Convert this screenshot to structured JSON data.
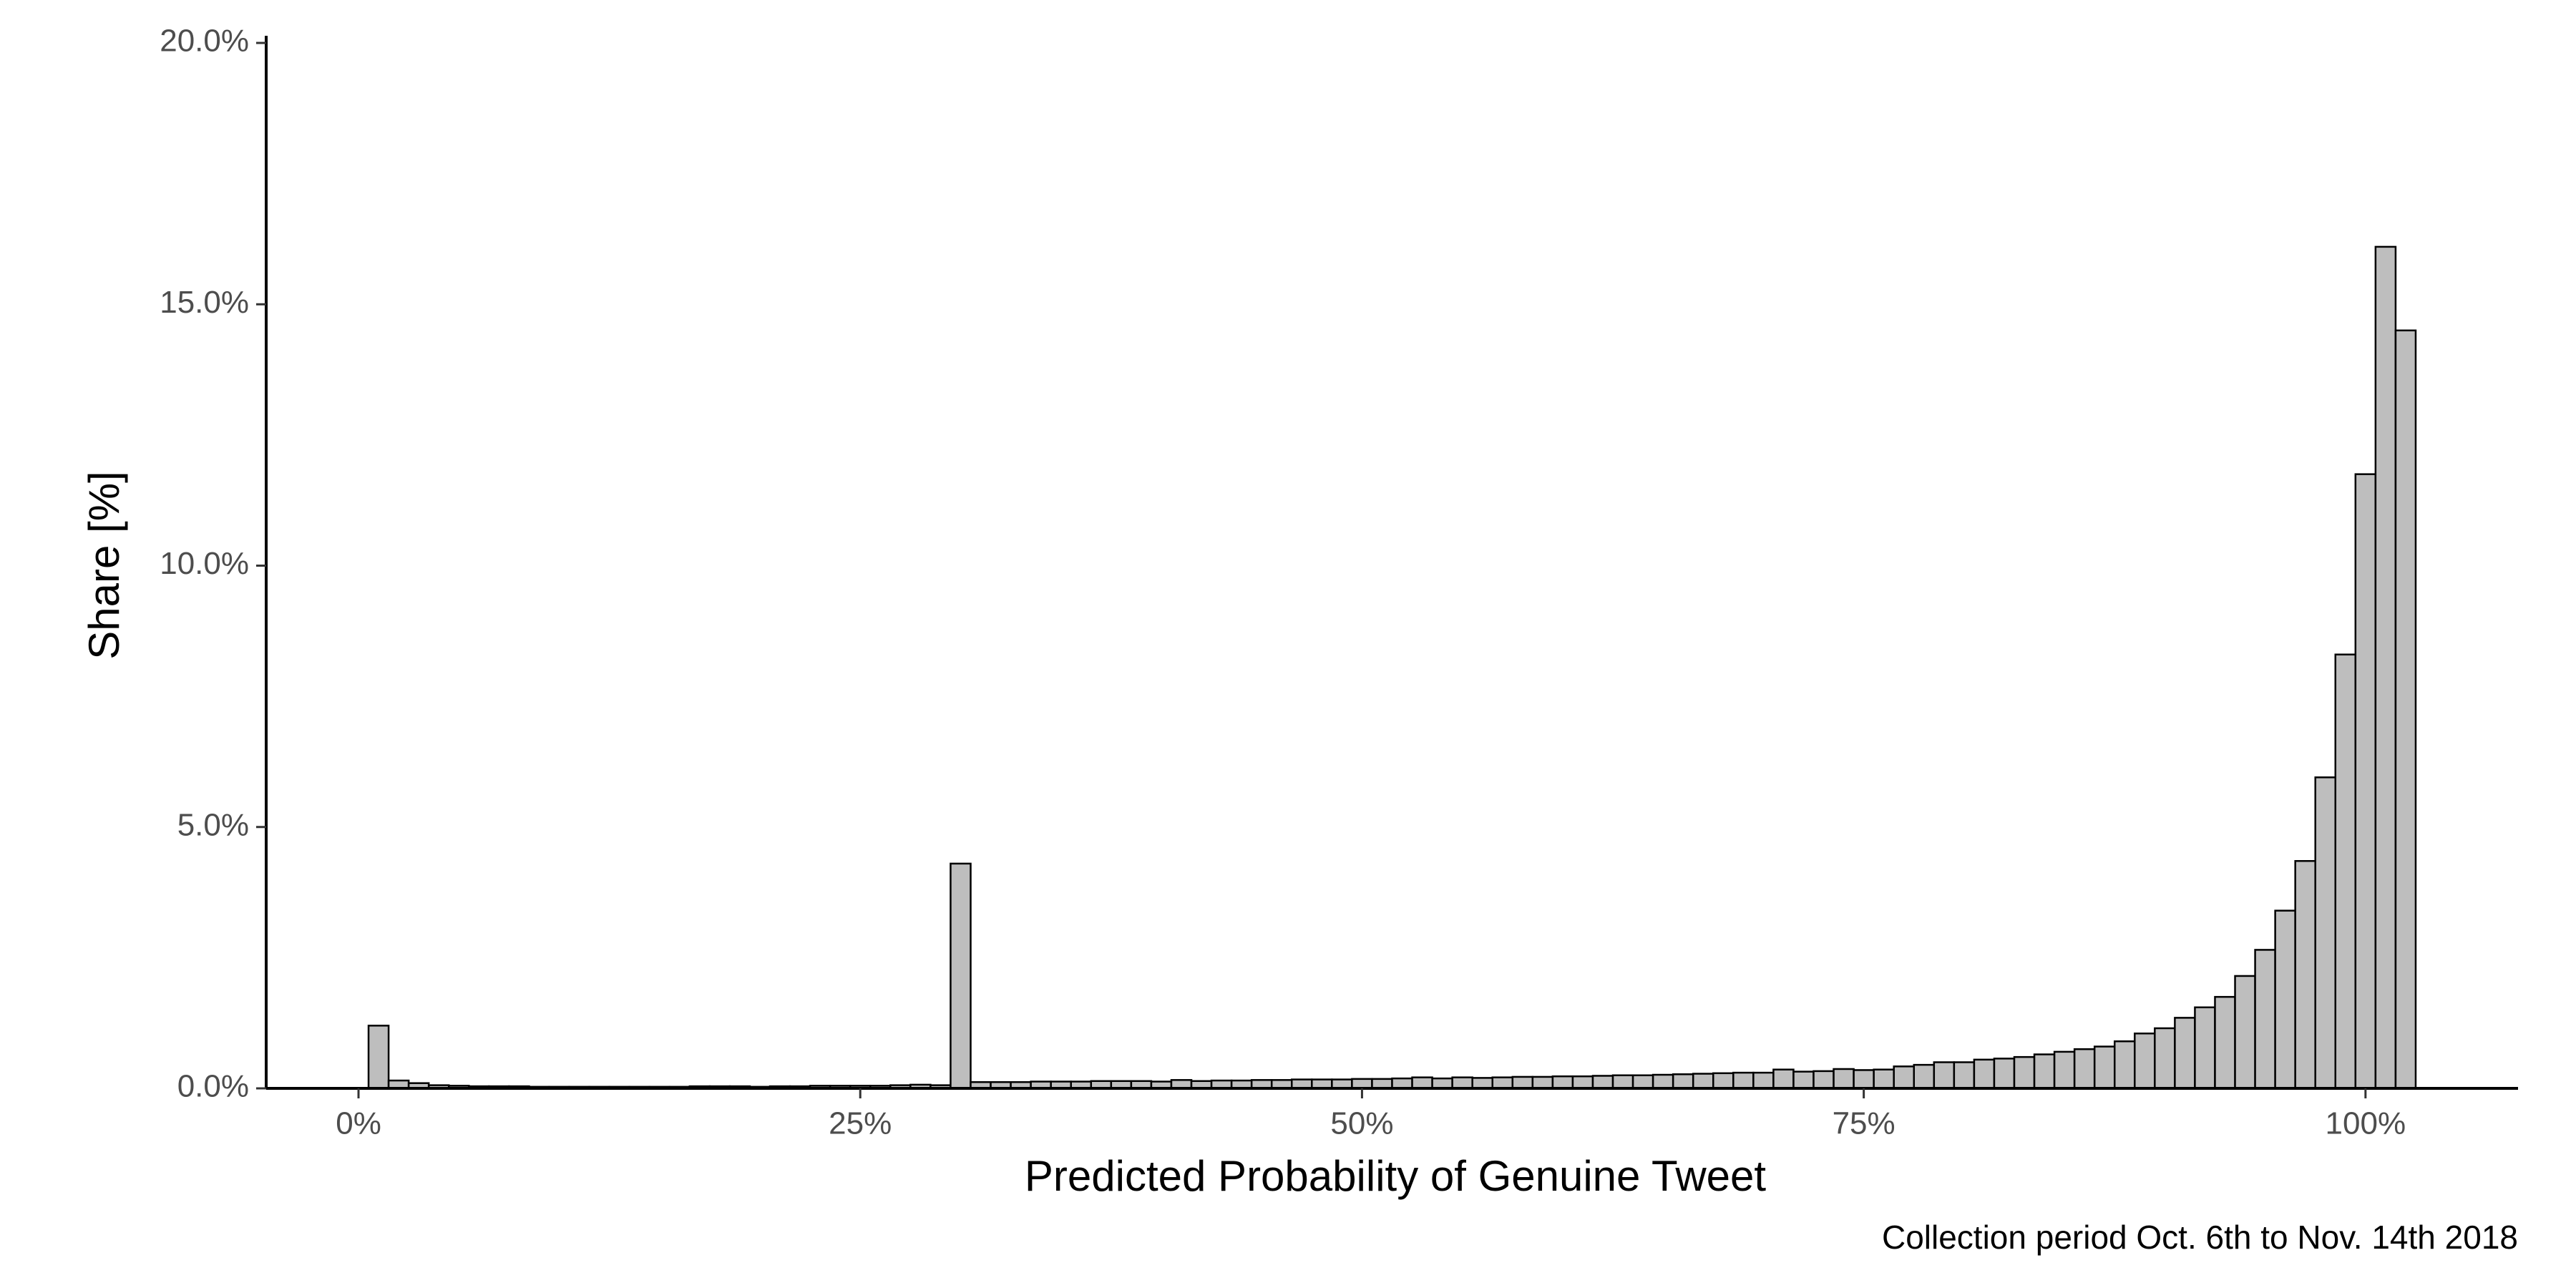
{
  "chart_data": {
    "type": "histogram",
    "xlabel": "Predicted Probability of Genuine Tweet",
    "ylabel": "Share [%]",
    "caption": "Collection period Oct. 6th to Nov. 14th 2018",
    "color": "#bebebe",
    "edgecolor": "#000000",
    "bins": [
      0.5,
      1.5,
      2.5,
      3.5,
      4.5,
      5.5,
      6.5,
      7.5,
      8.5,
      9.5,
      10.5,
      11.5,
      12.5,
      13.5,
      14.5,
      15.5,
      16.5,
      17.5,
      18.5,
      19.5,
      20.5,
      21.5,
      22.5,
      23.5,
      24.5,
      25.5,
      26.5,
      27.5,
      28.5,
      29.5,
      30.5,
      31.5,
      32.5,
      33.5,
      34.5,
      35.5,
      36.5,
      37.5,
      38.5,
      39.5,
      40.5,
      41.5,
      42.5,
      43.5,
      44.5,
      45.5,
      46.5,
      47.5,
      48.5,
      49.5,
      50.5,
      51.5,
      52.5,
      53.5,
      54.5,
      55.5,
      56.5,
      57.5,
      58.5,
      59.5,
      60.5,
      61.5,
      62.5,
      63.5,
      64.5,
      65.5,
      66.5,
      67.5,
      68.5,
      69.5,
      70.5,
      71.5,
      72.5,
      73.5,
      74.5,
      75.5,
      76.5,
      77.5,
      78.5,
      79.5,
      80.5,
      81.5,
      82.5,
      83.5,
      84.5,
      85.5,
      86.5,
      87.5,
      88.5,
      89.5,
      90.5,
      91.5,
      92.5,
      93.5,
      94.5,
      95.5,
      96.5,
      97.5,
      98.5,
      99.5,
      100.5,
      101.5,
      102.5
    ],
    "values": [
      1.2,
      0.15,
      0.1,
      0.06,
      0.05,
      0.04,
      0.04,
      0.04,
      0.03,
      0.03,
      0.03,
      0.03,
      0.03,
      0.03,
      0.03,
      0.03,
      0.04,
      0.04,
      0.04,
      0.03,
      0.04,
      0.04,
      0.05,
      0.05,
      0.05,
      0.05,
      0.06,
      0.07,
      0.06,
      4.3,
      0.12,
      0.12,
      0.12,
      0.13,
      0.13,
      0.13,
      0.14,
      0.14,
      0.14,
      0.13,
      0.16,
      0.14,
      0.15,
      0.15,
      0.16,
      0.16,
      0.17,
      0.17,
      0.17,
      0.18,
      0.18,
      0.19,
      0.21,
      0.19,
      0.21,
      0.2,
      0.21,
      0.22,
      0.22,
      0.23,
      0.23,
      0.24,
      0.25,
      0.25,
      0.26,
      0.27,
      0.28,
      0.29,
      0.3,
      0.3,
      0.36,
      0.32,
      0.33,
      0.37,
      0.35,
      0.36,
      0.42,
      0.45,
      0.5,
      0.5,
      0.55,
      0.57,
      0.6,
      0.65,
      0.7,
      0.75,
      0.8,
      0.9,
      1.05,
      1.15,
      1.35,
      1.55,
      1.75,
      2.15,
      2.65,
      3.4,
      4.35,
      5.95,
      8.3,
      11.75,
      16.1,
      14.5
    ],
    "xlim": [
      -4.6,
      107.6
    ],
    "ylim": [
      0,
      20
    ],
    "xticks": [
      {
        "value": 0,
        "label": "0%"
      },
      {
        "value": 25,
        "label": "25%"
      },
      {
        "value": 50,
        "label": "50%"
      },
      {
        "value": 75,
        "label": "75%"
      },
      {
        "value": 100,
        "label": "100%"
      }
    ],
    "yticks": [
      {
        "value": 0,
        "label": "0.0%"
      },
      {
        "value": 5,
        "label": "5.0%"
      },
      {
        "value": 10,
        "label": "10.0%"
      },
      {
        "value": 15,
        "label": "15.0%"
      },
      {
        "value": 20,
        "label": "20.0%"
      }
    ],
    "grid": false
  }
}
